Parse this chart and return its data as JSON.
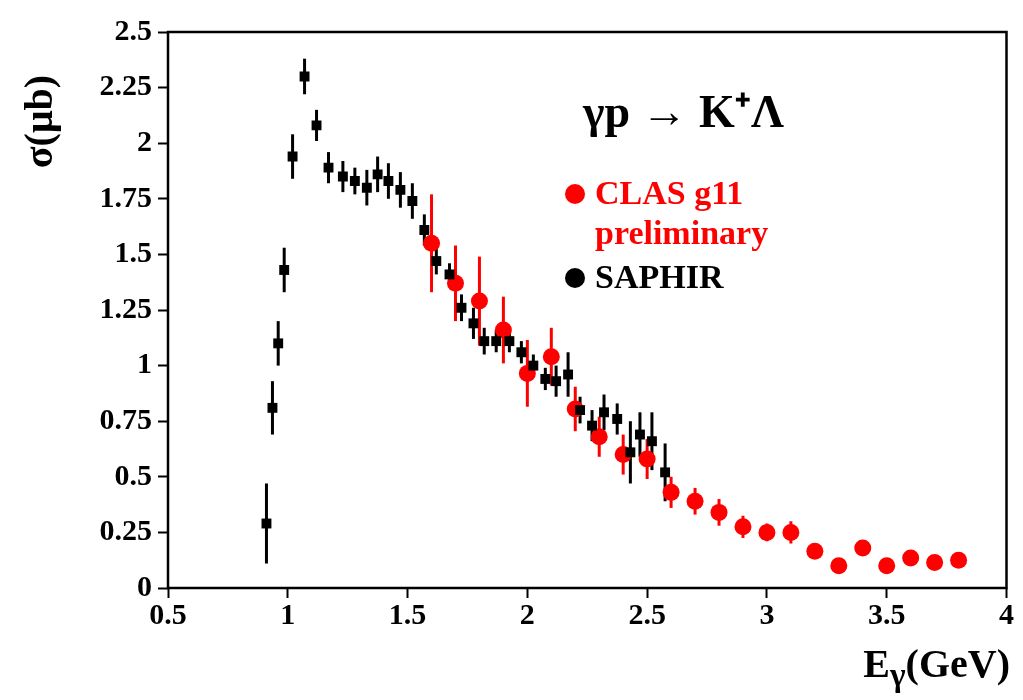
{
  "chart_data": {
    "type": "scatter",
    "title": "γp → K⁺Λ",
    "xlabel": "E$_{γ}$(GeV)",
    "ylabel": "σ(μb)",
    "xlim": [
      0.5,
      4
    ],
    "xticks": [
      0.5,
      1,
      1.5,
      2,
      2.5,
      3,
      3.5,
      4
    ],
    "ylim": [
      0,
      2.5
    ],
    "yticks": [
      0,
      0.25,
      0.5,
      0.75,
      1,
      1.25,
      1.5,
      1.75,
      2,
      2.25,
      2.5
    ],
    "grid": false,
    "legend": "top right",
    "series": [
      {
        "name": "SAPHIR",
        "color": "#000000",
        "marker": "square",
        "x": [
          0.911,
          0.936,
          0.96,
          0.985,
          1.02,
          1.07,
          1.12,
          1.17,
          1.23,
          1.28,
          1.33,
          1.375,
          1.42,
          1.47,
          1.52,
          1.57,
          1.62,
          1.675,
          1.725,
          1.775,
          1.82,
          1.87,
          1.925,
          1.975,
          2.025,
          2.075,
          2.12,
          2.17,
          2.22,
          2.27,
          2.32,
          2.375,
          2.43,
          2.47,
          2.52,
          2.575
        ],
        "values": [
          0.29,
          0.81,
          1.1,
          1.43,
          1.94,
          2.3,
          2.08,
          1.89,
          1.85,
          1.83,
          1.8,
          1.86,
          1.83,
          1.79,
          1.74,
          1.61,
          1.47,
          1.41,
          1.26,
          1.19,
          1.11,
          1.11,
          1.11,
          1.06,
          1.0,
          0.94,
          0.93,
          0.96,
          0.8,
          0.73,
          0.79,
          0.76,
          0.61,
          0.69,
          0.66,
          0.52
        ],
        "errors": [
          0.18,
          0.12,
          0.1,
          0.1,
          0.1,
          0.08,
          0.07,
          0.07,
          0.07,
          0.06,
          0.08,
          0.08,
          0.08,
          0.08,
          0.08,
          0.07,
          0.06,
          0.05,
          0.06,
          0.07,
          0.06,
          0.05,
          0.05,
          0.05,
          0.05,
          0.05,
          0.07,
          0.1,
          0.06,
          0.07,
          0.08,
          0.07,
          0.14,
          0.1,
          0.13,
          0.13
        ]
      },
      {
        "name": "CLAS g11 preliminary",
        "color": "#ff0000",
        "marker": "circle",
        "x": [
          1.6,
          1.7,
          1.8,
          1.9,
          2.0,
          2.1,
          2.2,
          2.3,
          2.4,
          2.5,
          2.6,
          2.7,
          2.8,
          2.9,
          3.0,
          3.1,
          3.2,
          3.3,
          3.4,
          3.5,
          3.6,
          3.7,
          3.8
        ],
        "values": [
          1.55,
          1.37,
          1.29,
          1.16,
          0.965,
          1.04,
          0.805,
          0.68,
          0.6,
          0.58,
          0.43,
          0.39,
          0.34,
          0.275,
          0.25,
          0.25,
          0.165,
          0.1,
          0.18,
          0.1,
          0.135,
          0.115,
          0.125
        ],
        "errors": [
          0.22,
          0.17,
          0.2,
          0.15,
          0.15,
          0.13,
          0.1,
          0.09,
          0.09,
          0.09,
          0.07,
          0.06,
          0.06,
          0.05,
          0.04,
          0.05,
          0.03,
          0.02,
          0.03,
          0.02,
          0.02,
          0.02,
          0.03
        ]
      }
    ]
  }
}
